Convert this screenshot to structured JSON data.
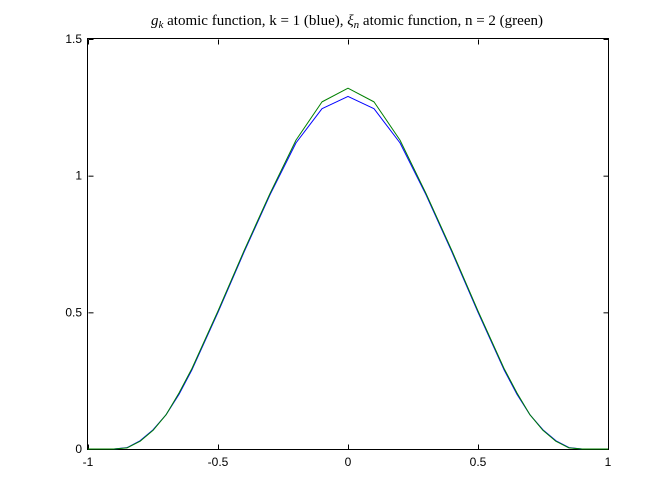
{
  "chart_data": {
    "type": "line",
    "title_parts": [
      {
        "text": "g",
        "style": "math"
      },
      {
        "text": "k",
        "style": "math-sub"
      },
      {
        "text": " atomic function, k = 1 (blue), ",
        "style": "plain"
      },
      {
        "text": "ξ",
        "style": "math"
      },
      {
        "text": "n",
        "style": "math-sub"
      },
      {
        "text": " atomic function, n = 2 (green)",
        "style": "plain"
      }
    ],
    "xlim": [
      -1,
      1
    ],
    "ylim": [
      0,
      1.5
    ],
    "x_ticks": [
      -1,
      -0.5,
      0,
      0.5,
      1
    ],
    "x_tick_labels": [
      "-1",
      "-0.5",
      "0",
      "0.5",
      "1"
    ],
    "y_ticks": [
      0,
      0.5,
      1,
      1.5
    ],
    "y_tick_labels": [
      "0",
      "0.5",
      "1",
      "1.5"
    ],
    "grid": false,
    "series": [
      {
        "color": "#0000ff",
        "x": [
          -1,
          -0.9,
          -0.85,
          -0.8,
          -0.75,
          -0.7,
          -0.65,
          -0.6,
          -0.5,
          -0.4,
          -0.3,
          -0.2,
          -0.1,
          0,
          0.1,
          0.2,
          0.3,
          0.4,
          0.5,
          0.6,
          0.65,
          0.7,
          0.75,
          0.8,
          0.85,
          0.9,
          1
        ],
        "y": [
          0,
          0,
          0.005,
          0.03,
          0.07,
          0.125,
          0.2,
          0.29,
          0.5,
          0.72,
          0.93,
          1.12,
          1.245,
          1.29,
          1.245,
          1.12,
          0.93,
          0.72,
          0.5,
          0.29,
          0.2,
          0.125,
          0.07,
          0.03,
          0.005,
          0,
          0
        ]
      },
      {
        "color": "#008000",
        "x": [
          -1,
          -0.9,
          -0.85,
          -0.8,
          -0.75,
          -0.7,
          -0.65,
          -0.6,
          -0.5,
          -0.4,
          -0.3,
          -0.2,
          -0.1,
          0,
          0.1,
          0.2,
          0.3,
          0.4,
          0.5,
          0.6,
          0.65,
          0.7,
          0.75,
          0.8,
          0.85,
          0.9,
          1
        ],
        "y": [
          0,
          0,
          0.004,
          0.028,
          0.068,
          0.125,
          0.205,
          0.295,
          0.505,
          0.725,
          0.935,
          1.13,
          1.27,
          1.32,
          1.27,
          1.13,
          0.935,
          0.725,
          0.505,
          0.295,
          0.205,
          0.125,
          0.068,
          0.028,
          0.004,
          0,
          0
        ]
      }
    ]
  }
}
